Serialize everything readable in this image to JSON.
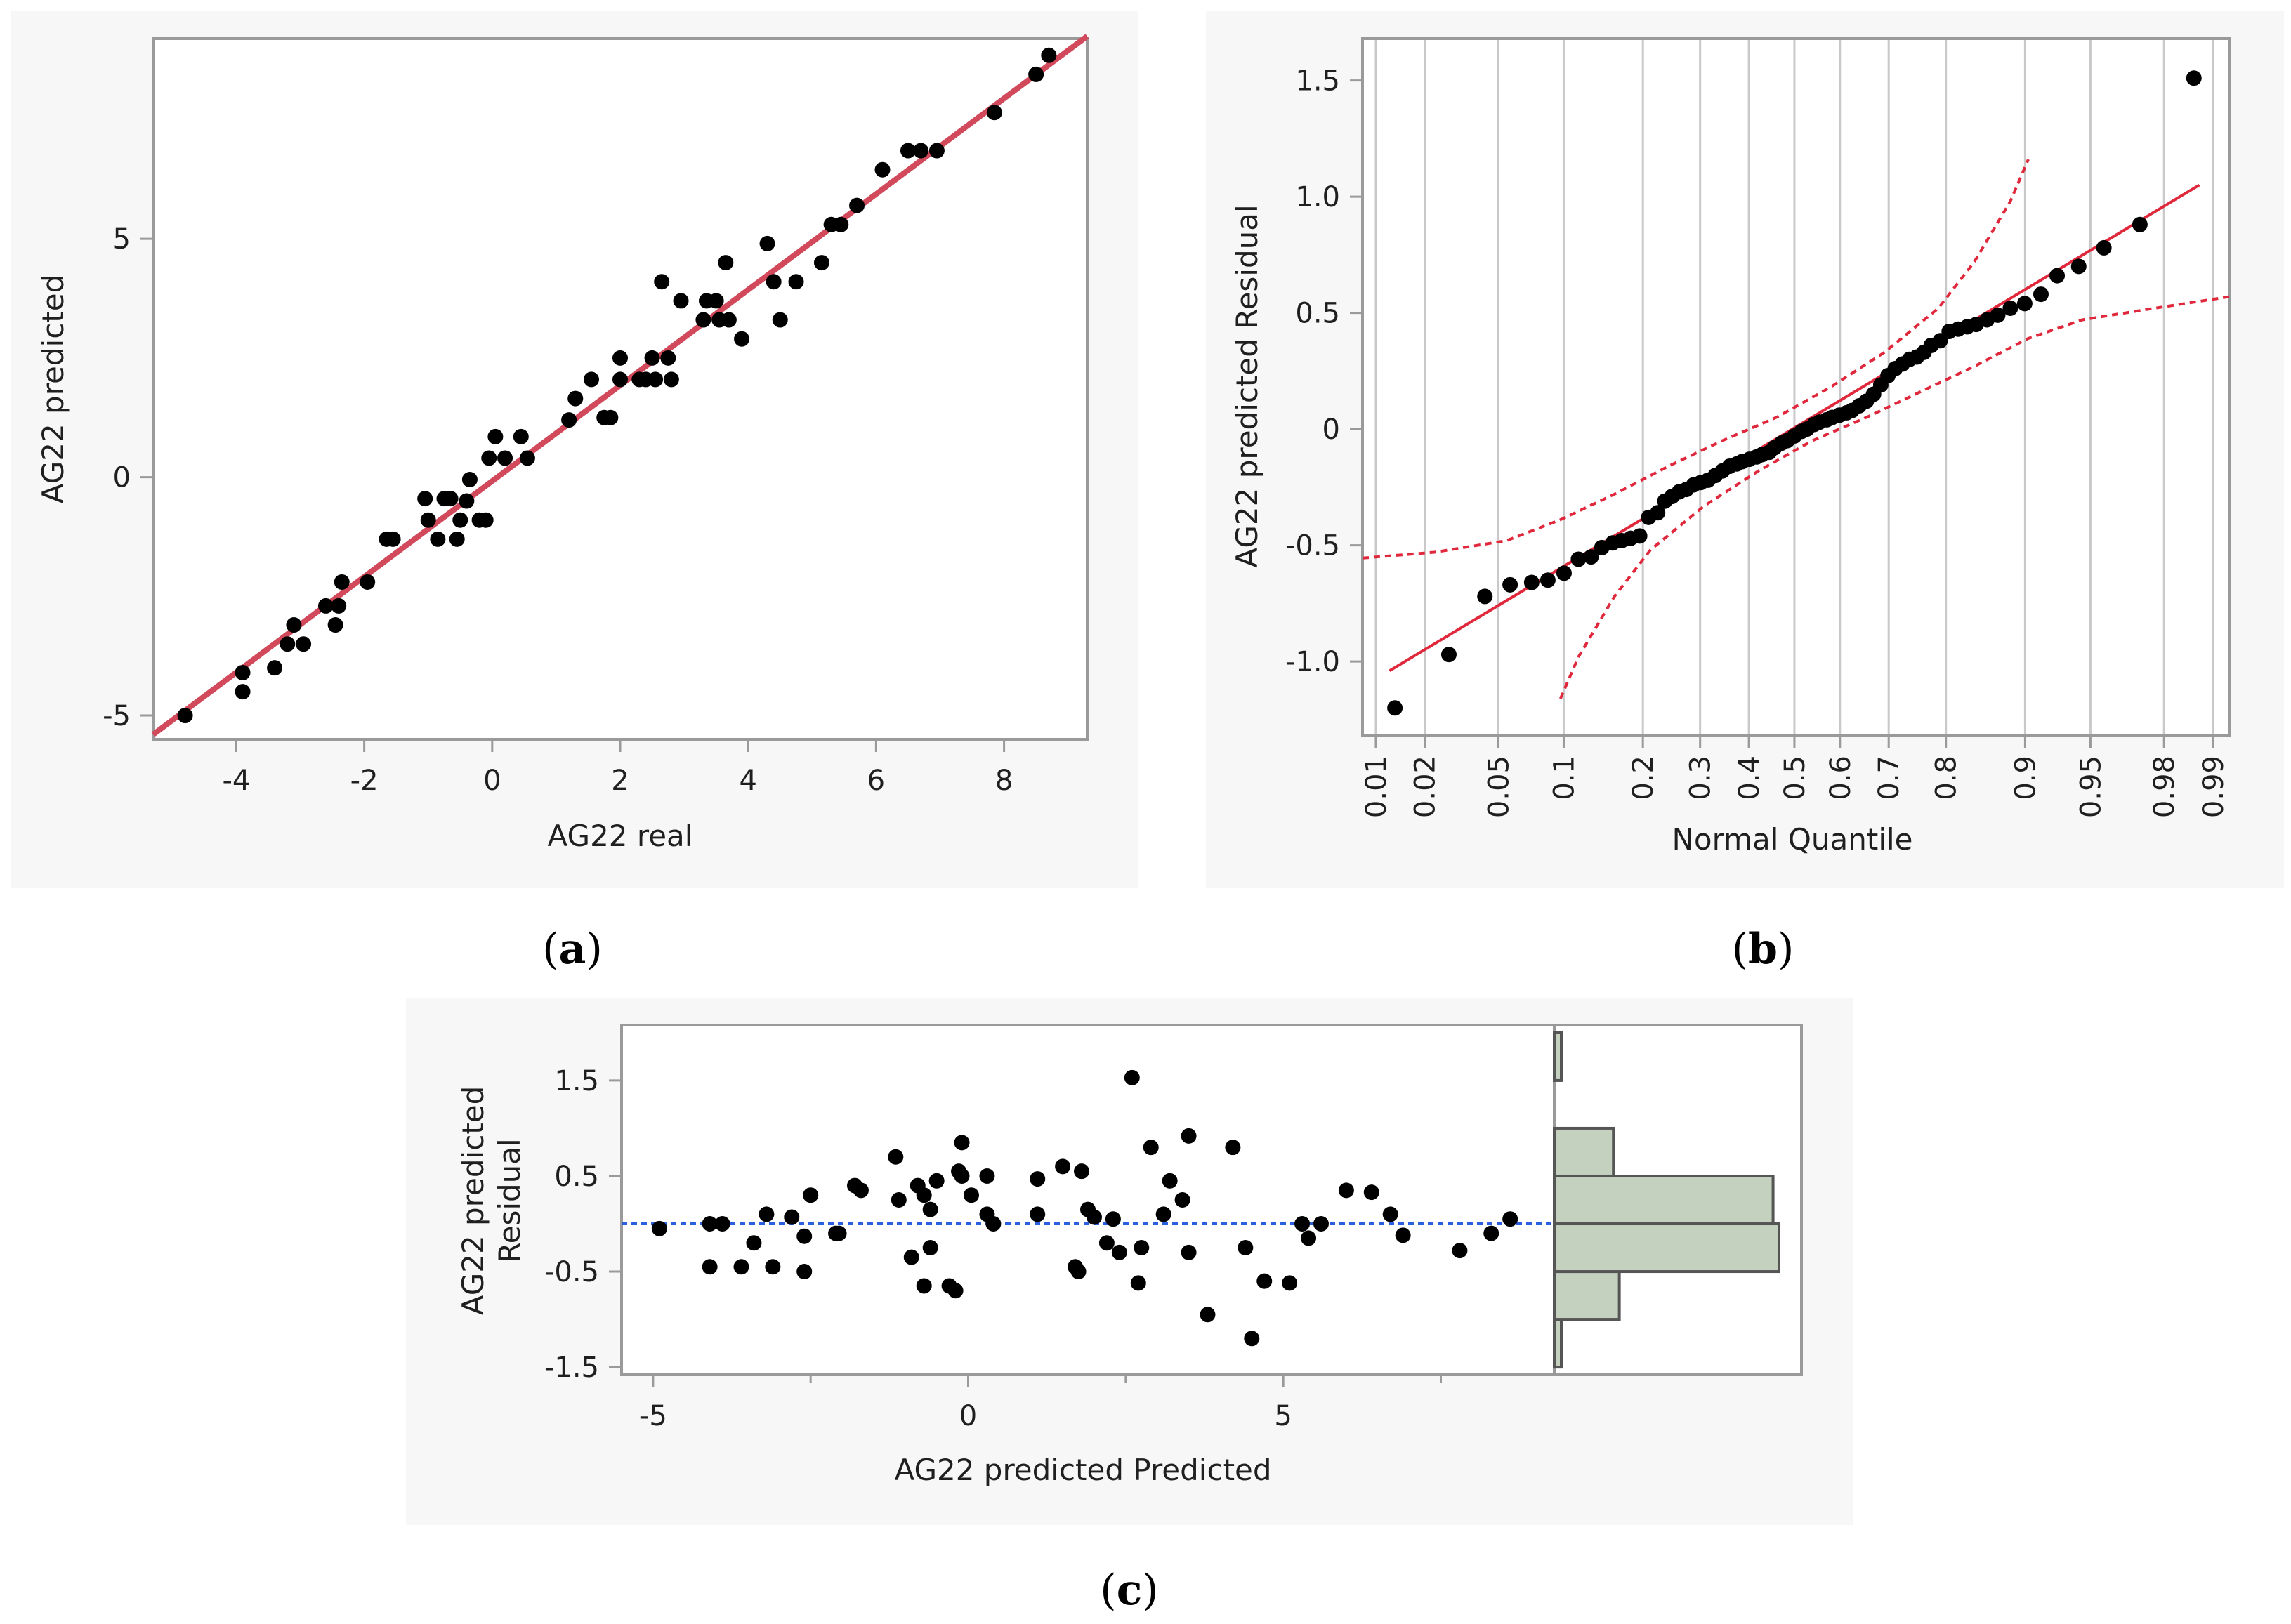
{
  "figure": {
    "captions": [
      "(a)",
      "(b)",
      "(c)"
    ]
  },
  "chart_data": [
    {
      "id": "a",
      "type": "scatter",
      "title": "",
      "xlabel": "AG22 real",
      "ylabel": "AG22 predicted",
      "xlim": [
        -5.3,
        9.3
      ],
      "ylim": [
        -5.5,
        9.2
      ],
      "xticks": [
        -4,
        -2,
        0,
        2,
        4,
        6,
        8
      ],
      "yticks": [
        -5,
        0,
        5
      ],
      "fit_line": {
        "x": [
          -5.3,
          9.3
        ],
        "y": [
          -5.4,
          9.25
        ],
        "color": "#d1495b"
      },
      "points": [
        [
          -4.8,
          -5.0
        ],
        [
          -3.9,
          -4.5
        ],
        [
          -3.9,
          -4.1
        ],
        [
          -3.4,
          -4.0
        ],
        [
          -3.2,
          -3.5
        ],
        [
          -3.1,
          -3.1
        ],
        [
          -2.95,
          -3.5
        ],
        [
          -2.6,
          -2.7
        ],
        [
          -2.45,
          -3.1
        ],
        [
          -2.4,
          -2.7
        ],
        [
          -2.35,
          -2.2
        ],
        [
          -1.95,
          -2.2
        ],
        [
          -1.65,
          -1.3
        ],
        [
          -1.55,
          -1.3
        ],
        [
          -1.05,
          -0.45
        ],
        [
          -1.0,
          -0.9
        ],
        [
          -0.85,
          -1.3
        ],
        [
          -0.75,
          -0.45
        ],
        [
          -0.65,
          -0.45
        ],
        [
          -0.55,
          -1.3
        ],
        [
          -0.5,
          -0.9
        ],
        [
          -0.4,
          -0.5
        ],
        [
          -0.35,
          -0.05
        ],
        [
          -0.2,
          -0.9
        ],
        [
          -0.1,
          -0.9
        ],
        [
          -0.05,
          0.4
        ],
        [
          0.05,
          0.85
        ],
        [
          0.2,
          0.4
        ],
        [
          0.45,
          0.85
        ],
        [
          0.55,
          0.4
        ],
        [
          1.2,
          1.2
        ],
        [
          1.3,
          1.65
        ],
        [
          1.55,
          2.05
        ],
        [
          1.75,
          1.25
        ],
        [
          1.85,
          1.25
        ],
        [
          2.0,
          2.05
        ],
        [
          2.0,
          2.5
        ],
        [
          2.3,
          2.05
        ],
        [
          2.4,
          2.05
        ],
        [
          2.5,
          2.5
        ],
        [
          2.55,
          2.05
        ],
        [
          2.65,
          4.1
        ],
        [
          2.75,
          2.5
        ],
        [
          2.8,
          2.05
        ],
        [
          2.95,
          3.7
        ],
        [
          3.3,
          3.3
        ],
        [
          3.35,
          3.7
        ],
        [
          3.5,
          3.7
        ],
        [
          3.55,
          3.3
        ],
        [
          3.65,
          4.5
        ],
        [
          3.7,
          3.3
        ],
        [
          3.9,
          2.9
        ],
        [
          4.3,
          4.9
        ],
        [
          4.4,
          4.1
        ],
        [
          4.5,
          3.3
        ],
        [
          4.75,
          4.1
        ],
        [
          5.15,
          4.5
        ],
        [
          5.3,
          5.3
        ],
        [
          5.45,
          5.3
        ],
        [
          5.7,
          5.7
        ],
        [
          6.1,
          6.45
        ],
        [
          6.5,
          6.85
        ],
        [
          6.7,
          6.85
        ],
        [
          6.95,
          6.85
        ],
        [
          7.85,
          7.65
        ],
        [
          8.5,
          8.45
        ],
        [
          8.7,
          8.85
        ]
      ]
    },
    {
      "id": "b",
      "type": "scatter",
      "title": "",
      "xlabel": "Normal Quantile",
      "ylabel": "AG22 predicted Residual",
      "xlim_z": [
        -2.4,
        2.42
      ],
      "ylim": [
        -1.32,
        1.68
      ],
      "xtick_labels": [
        "0.01",
        "0.02",
        "0.05",
        "0.1",
        "0.2",
        "0.3",
        "0.4",
        "0.5",
        "0.6",
        "0.7",
        "0.8",
        "0.9",
        "0.95",
        "0.98",
        "0.99"
      ],
      "xtick_z": [
        -2.326,
        -2.054,
        -1.645,
        -1.282,
        -0.842,
        -0.524,
        -0.253,
        0,
        0.253,
        0.524,
        0.842,
        1.282,
        1.645,
        2.054,
        2.326
      ],
      "yticks": [
        -1.0,
        -0.5,
        0,
        0.5,
        1.0,
        1.5
      ],
      "ytick_labels": [
        "-1.0",
        "-0.5",
        "0",
        "0.5",
        "1.0",
        "1.5"
      ],
      "fit_line": {
        "z": [
          -2.25,
          2.25
        ],
        "y": [
          -1.04,
          1.05
        ],
        "color": "#e0283c"
      },
      "confidence_band": {
        "upper": [
          [
            -2.4,
            -0.555
          ],
          [
            -2.0,
            -0.53
          ],
          [
            -1.6,
            -0.48
          ],
          [
            -1.3,
            -0.39
          ],
          [
            -1.0,
            -0.28
          ],
          [
            -0.7,
            -0.16
          ],
          [
            -0.4,
            -0.05
          ],
          [
            -0.1,
            0.05
          ],
          [
            0.2,
            0.18
          ],
          [
            0.5,
            0.33
          ],
          [
            0.8,
            0.52
          ],
          [
            1.0,
            0.72
          ],
          [
            1.2,
            0.98
          ],
          [
            1.3,
            1.16
          ]
        ],
        "lower": [
          [
            -1.3,
            -1.16
          ],
          [
            -1.2,
            -0.98
          ],
          [
            -1.0,
            -0.72
          ],
          [
            -0.8,
            -0.52
          ],
          [
            -0.5,
            -0.33
          ],
          [
            -0.2,
            -0.18
          ],
          [
            0.1,
            -0.05
          ],
          [
            0.4,
            0.05
          ],
          [
            0.7,
            0.16
          ],
          [
            1.0,
            0.27
          ],
          [
            1.3,
            0.39
          ],
          [
            1.6,
            0.47
          ],
          [
            2.0,
            0.52
          ],
          [
            2.42,
            0.57
          ]
        ],
        "color": "#e0283c"
      },
      "points": [
        [
          -2.22,
          -1.2
        ],
        [
          -1.92,
          -0.97
        ],
        [
          -1.72,
          -0.72
        ],
        [
          -1.58,
          -0.67
        ],
        [
          -1.46,
          -0.66
        ],
        [
          -1.37,
          -0.65
        ],
        [
          -1.28,
          -0.62
        ],
        [
          -1.2,
          -0.56
        ],
        [
          -1.13,
          -0.55
        ],
        [
          -1.07,
          -0.51
        ],
        [
          -1.01,
          -0.49
        ],
        [
          -0.96,
          -0.48
        ],
        [
          -0.91,
          -0.47
        ],
        [
          -0.86,
          -0.46
        ],
        [
          -0.81,
          -0.38
        ],
        [
          -0.76,
          -0.36
        ],
        [
          -0.72,
          -0.31
        ],
        [
          -0.68,
          -0.29
        ],
        [
          -0.64,
          -0.27
        ],
        [
          -0.6,
          -0.26
        ],
        [
          -0.56,
          -0.24
        ],
        [
          -0.52,
          -0.23
        ],
        [
          -0.48,
          -0.22
        ],
        [
          -0.44,
          -0.2
        ],
        [
          -0.4,
          -0.18
        ],
        [
          -0.36,
          -0.16
        ],
        [
          -0.32,
          -0.15
        ],
        [
          -0.29,
          -0.14
        ],
        [
          -0.25,
          -0.13
        ],
        [
          -0.21,
          -0.12
        ],
        [
          -0.18,
          -0.11
        ],
        [
          -0.14,
          -0.1
        ],
        [
          -0.11,
          -0.08
        ],
        [
          -0.07,
          -0.06
        ],
        [
          -0.04,
          -0.05
        ],
        [
          0.0,
          -0.03
        ],
        [
          0.04,
          -0.01
        ],
        [
          0.07,
          0.0
        ],
        [
          0.11,
          0.02
        ],
        [
          0.14,
          0.03
        ],
        [
          0.18,
          0.04
        ],
        [
          0.21,
          0.05
        ],
        [
          0.25,
          0.06
        ],
        [
          0.29,
          0.07
        ],
        [
          0.32,
          0.08
        ],
        [
          0.36,
          0.1
        ],
        [
          0.4,
          0.12
        ],
        [
          0.44,
          0.15
        ],
        [
          0.48,
          0.19
        ],
        [
          0.52,
          0.23
        ],
        [
          0.56,
          0.26
        ],
        [
          0.6,
          0.28
        ],
        [
          0.64,
          0.3
        ],
        [
          0.68,
          0.31
        ],
        [
          0.72,
          0.33
        ],
        [
          0.76,
          0.36
        ],
        [
          0.81,
          0.38
        ],
        [
          0.86,
          0.42
        ],
        [
          0.91,
          0.43
        ],
        [
          0.96,
          0.44
        ],
        [
          1.01,
          0.45
        ],
        [
          1.07,
          0.47
        ],
        [
          1.13,
          0.49
        ],
        [
          1.2,
          0.52
        ],
        [
          1.28,
          0.54
        ],
        [
          1.37,
          0.58
        ],
        [
          1.46,
          0.66
        ],
        [
          1.58,
          0.7
        ],
        [
          1.72,
          0.78
        ],
        [
          1.92,
          0.88
        ],
        [
          2.22,
          1.51
        ]
      ]
    },
    {
      "id": "c",
      "type": "scatter",
      "title": "",
      "xlabel": "AG22 predicted Predicted",
      "ylabel_lines": [
        "AG22 predicted",
        "Residual"
      ],
      "xlim": [
        -5.5,
        9.3
      ],
      "ylim": [
        -1.58,
        2.08
      ],
      "xticks": [
        -5,
        0,
        5
      ],
      "xtick_labels": [
        "-5",
        "0",
        "5"
      ],
      "yticks": [
        -1.5,
        -0.5,
        0.5,
        1.5
      ],
      "ytick_labels": [
        "-1.5",
        "-0.5",
        "0.5",
        "1.5"
      ],
      "zero_line": {
        "y": 0,
        "color": "#2a5fe0"
      },
      "points": [
        [
          -4.9,
          -0.05
        ],
        [
          -4.1,
          -0.45
        ],
        [
          -4.1,
          0.0
        ],
        [
          -3.9,
          0.0
        ],
        [
          -3.6,
          -0.45
        ],
        [
          -3.4,
          -0.2
        ],
        [
          -3.2,
          0.1
        ],
        [
          -3.1,
          -0.45
        ],
        [
          -2.8,
          0.07
        ],
        [
          -2.6,
          -0.5
        ],
        [
          -2.5,
          0.3
        ],
        [
          -2.6,
          -0.13
        ],
        [
          -2.1,
          -0.1
        ],
        [
          -2.05,
          -0.1
        ],
        [
          -1.8,
          0.4
        ],
        [
          -1.7,
          0.35
        ],
        [
          -1.15,
          0.7
        ],
        [
          -1.1,
          0.25
        ],
        [
          -0.9,
          -0.35
        ],
        [
          -0.8,
          0.4
        ],
        [
          -0.7,
          -0.65
        ],
        [
          -0.7,
          0.3
        ],
        [
          -0.6,
          -0.25
        ],
        [
          -0.6,
          0.15
        ],
        [
          -0.5,
          0.45
        ],
        [
          -0.3,
          -0.65
        ],
        [
          -0.2,
          -0.7
        ],
        [
          -0.15,
          0.55
        ],
        [
          -0.1,
          0.85
        ],
        [
          -0.1,
          0.5
        ],
        [
          0.05,
          0.3
        ],
        [
          0.3,
          0.5
        ],
        [
          0.3,
          0.1
        ],
        [
          0.4,
          0.0
        ],
        [
          1.1,
          0.1
        ],
        [
          1.1,
          0.47
        ],
        [
          1.5,
          0.6
        ],
        [
          1.7,
          -0.45
        ],
        [
          1.75,
          -0.5
        ],
        [
          1.8,
          0.55
        ],
        [
          1.9,
          0.15
        ],
        [
          2.0,
          0.07
        ],
        [
          2.2,
          -0.2
        ],
        [
          2.3,
          0.05
        ],
        [
          2.4,
          -0.3
        ],
        [
          2.6,
          1.53
        ],
        [
          2.7,
          -0.62
        ],
        [
          2.75,
          -0.25
        ],
        [
          2.9,
          0.8
        ],
        [
          3.1,
          0.1
        ],
        [
          3.2,
          0.45
        ],
        [
          3.4,
          0.25
        ],
        [
          3.5,
          0.92
        ],
        [
          3.5,
          -0.3
        ],
        [
          3.8,
          -0.95
        ],
        [
          4.2,
          0.8
        ],
        [
          4.4,
          -0.25
        ],
        [
          4.5,
          -1.2
        ],
        [
          4.7,
          -0.6
        ],
        [
          5.1,
          -0.62
        ],
        [
          5.3,
          0.0
        ],
        [
          5.4,
          -0.15
        ],
        [
          5.6,
          0.0
        ],
        [
          6.0,
          0.35
        ],
        [
          6.4,
          0.33
        ],
        [
          6.7,
          0.1
        ],
        [
          6.9,
          -0.12
        ],
        [
          7.8,
          -0.28
        ],
        [
          8.3,
          -0.1
        ],
        [
          8.6,
          0.05
        ]
      ],
      "histogram": {
        "bins": [
          [
            -1.5,
            -1.0
          ],
          [
            -1.0,
            -0.5
          ],
          [
            -0.5,
            0.0
          ],
          [
            0.0,
            0.5
          ],
          [
            0.5,
            1.0
          ],
          [
            1.0,
            1.5
          ],
          [
            1.5,
            2.0
          ]
        ],
        "counts": [
          1,
          11,
          38,
          37,
          10,
          0,
          1
        ],
        "fill": "#c3d1be",
        "stroke": "#555555"
      }
    }
  ]
}
